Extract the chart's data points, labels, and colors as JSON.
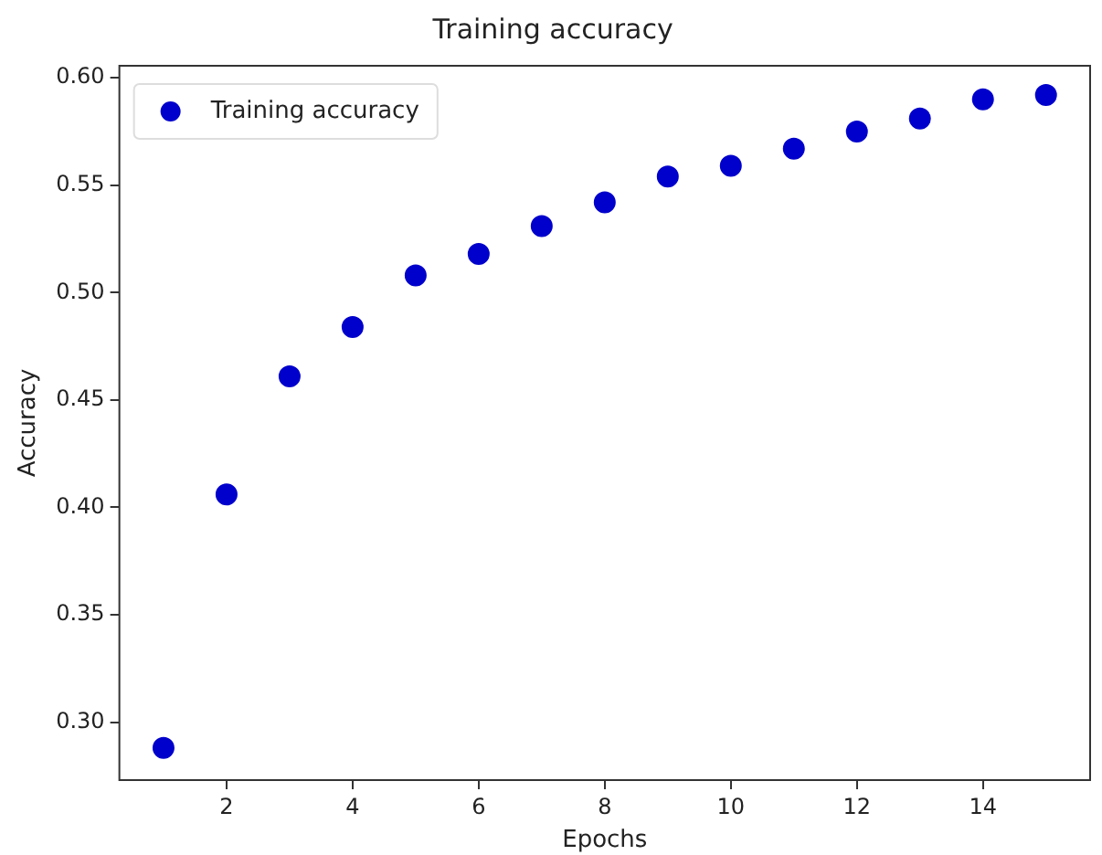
{
  "chart_data": {
    "type": "scatter",
    "title": "Training accuracy",
    "xlabel": "Epochs",
    "ylabel": "Accuracy",
    "x": [
      1,
      2,
      3,
      4,
      5,
      6,
      7,
      8,
      9,
      10,
      11,
      12,
      13,
      14,
      15
    ],
    "series": [
      {
        "name": "Training accuracy",
        "color": "#0000cc",
        "values": [
          0.288,
          0.406,
          0.461,
          0.484,
          0.508,
          0.518,
          0.531,
          0.542,
          0.554,
          0.559,
          0.567,
          0.575,
          0.581,
          0.59,
          0.592
        ]
      }
    ],
    "xlim": [
      0.3,
      15.7
    ],
    "xticks": [
      2,
      4,
      6,
      8,
      10,
      12,
      14
    ],
    "ylim": [
      0.273,
      0.6056
    ],
    "yticks": [
      {
        "value": 0.3,
        "label": "0.30"
      },
      {
        "value": 0.35,
        "label": "0.35"
      },
      {
        "value": 0.4,
        "label": "0.40"
      },
      {
        "value": 0.45,
        "label": "0.45"
      },
      {
        "value": 0.5,
        "label": "0.50"
      },
      {
        "value": 0.55,
        "label": "0.55"
      },
      {
        "value": 0.6,
        "label": "0.60"
      }
    ],
    "grid": false,
    "legend": "top left",
    "marker": "circle"
  }
}
